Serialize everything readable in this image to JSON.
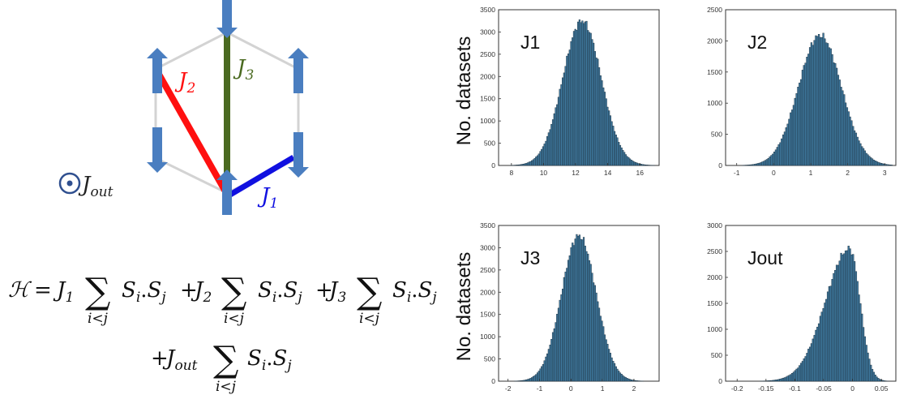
{
  "diagram": {
    "labels": {
      "j1": "J",
      "j1_sub": "1",
      "j2": "J",
      "j2_sub": "2",
      "j3": "J",
      "j3_sub": "3",
      "jout": "J",
      "jout_sub": "out"
    },
    "colors": {
      "j1": "#1010e0",
      "j2": "#ff1010",
      "j3": "#4a6a20",
      "spin": "#4a7ec0",
      "hexagon": "#d0d0d0",
      "jout": "#2f4f8f"
    },
    "spins": [
      "up",
      "up",
      "down",
      "up",
      "down",
      "up",
      "down"
    ]
  },
  "equation": {
    "H": "ℋ",
    "eq": "=",
    "plus": "+",
    "J": "J",
    "sub1": "1",
    "sub2": "2",
    "sub3": "3",
    "subout": "out",
    "sum": "∑",
    "sum_index": "i<j",
    "S": "S",
    "si": "i",
    "sj": "j",
    "dot": "."
  },
  "ylabel": "No. datasets",
  "chart_data": [
    {
      "type": "bar",
      "title": "J1",
      "mean": 12.4,
      "sd": 1.2,
      "peak": 3250,
      "xlim": [
        7.2,
        17.2
      ],
      "xticks": [
        8,
        10,
        12,
        14,
        16
      ],
      "ylim": [
        0,
        3500
      ],
      "yticks": [
        0,
        500,
        1000,
        1500,
        2000,
        2500,
        3000,
        3500
      ]
    },
    {
      "type": "bar",
      "title": "J2",
      "mean": 1.25,
      "sd": 0.58,
      "peak": 2090,
      "xlim": [
        -1.3,
        3.3
      ],
      "xticks": [
        -1,
        0,
        1,
        2,
        3
      ],
      "ylim": [
        0,
        2500
      ],
      "yticks": [
        0,
        500,
        1000,
        1500,
        2000,
        2500
      ]
    },
    {
      "type": "bar",
      "title": "J3",
      "mean": 0.25,
      "sd": 0.55,
      "peak": 3270,
      "xlim": [
        -2.3,
        2.8
      ],
      "xticks": [
        -2,
        -1,
        0,
        1,
        2
      ],
      "ylim": [
        0,
        3500
      ],
      "yticks": [
        0,
        500,
        1000,
        1500,
        2000,
        2500,
        3000,
        3500
      ]
    },
    {
      "type": "bar",
      "title": "Jout",
      "mode": -0.005,
      "sdLeft": 0.042,
      "sdRight": 0.018,
      "peak": 2550,
      "xlim": [
        -0.22,
        0.075
      ],
      "xticks": [
        -0.2,
        -0.15,
        -0.1,
        -0.05,
        0,
        0.05
      ],
      "xticklabels": [
        "-0.2",
        "-0.15",
        "-0.1",
        "-0.05",
        "0",
        "0.05"
      ],
      "ylim": [
        0,
        3000
      ],
      "yticks": [
        0,
        500,
        1000,
        1500,
        2000,
        2500,
        3000
      ]
    }
  ]
}
